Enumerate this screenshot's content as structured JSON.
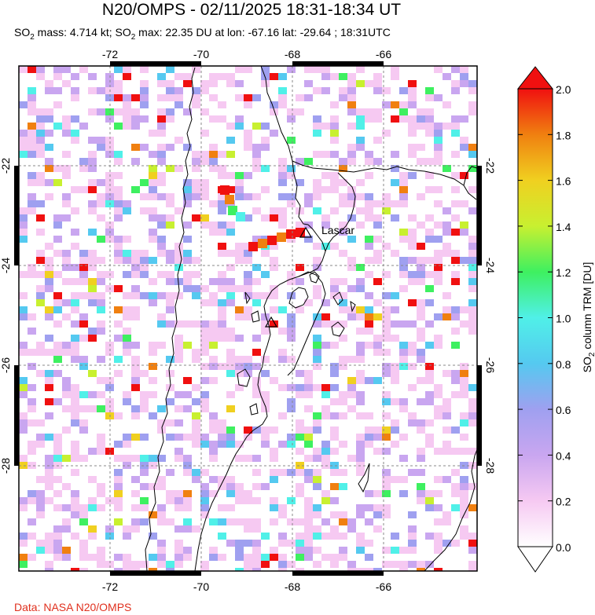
{
  "header": {
    "title": "N20/OMPS - 02/11/2025 18:31-18:34 UT",
    "subtitle_parts": {
      "so2_a": "SO",
      "sub_a": "2",
      "mass": " mass: 4.714 kt; SO",
      "sub_b": "2",
      "rest": " max: 22.35 DU at lon: -67.16 lat: -29.64 ; 18:31UTC"
    }
  },
  "map": {
    "lon_ticks": [
      "-72",
      "-70",
      "-68",
      "-66"
    ],
    "lat_ticks": [
      "-22",
      "-24",
      "-26",
      "-28"
    ],
    "volcanoes": [
      {
        "name": "Lascar",
        "label": "Lascar"
      },
      {
        "name": "Unnamed",
        "label": ""
      }
    ]
  },
  "colorbar": {
    "label_prefix": "SO",
    "label_sub": "2",
    "label_suffix": " column TRM [DU]",
    "ticks": [
      "2.0",
      "1.8",
      "1.6",
      "1.4",
      "1.2",
      "1.0",
      "0.8",
      "0.6",
      "0.4",
      "0.2",
      "0.0"
    ],
    "range": [
      0.0,
      2.0
    ],
    "colors": [
      "#ffffff",
      "#f6c9f2",
      "#c9a6f0",
      "#9fa0f0",
      "#55c9f0",
      "#50f0e8",
      "#3ef060",
      "#c8f030",
      "#f0d020",
      "#f08010",
      "#f01010"
    ]
  },
  "footer": {
    "credit": "Data: NASA N20/OMPS"
  }
}
